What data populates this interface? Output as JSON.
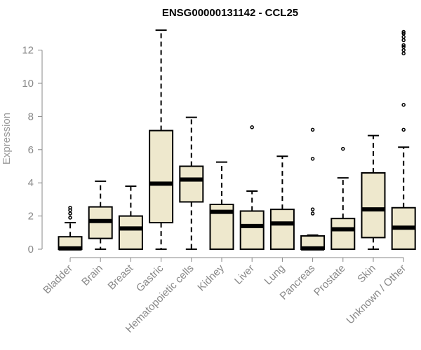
{
  "chart_data": {
    "type": "boxplot",
    "title": "ENSG00000131142 - CCL25",
    "ylabel": "Expression",
    "xlabel": "",
    "ylim": [
      0,
      13.3
    ],
    "yticks": [
      0,
      2,
      4,
      6,
      8,
      10,
      12
    ],
    "box_fill": "#EEE8CD",
    "box_stroke": "#000000",
    "categories": [
      "Bladder",
      "Brain",
      "Breast",
      "Gastric",
      "Hematopoietic cells",
      "Kidney",
      "Liver",
      "Lung",
      "Pancreas",
      "Prostate",
      "Skin",
      "Unknown / Other"
    ],
    "boxes": [
      {
        "min": 0,
        "q1": 0,
        "median": 0.05,
        "q3": 0.75,
        "max": 1.6,
        "outliers": [
          1.9,
          2.15,
          2.35,
          2.5
        ]
      },
      {
        "min": 0,
        "q1": 0.65,
        "median": 1.7,
        "q3": 2.55,
        "max": 4.1,
        "outliers": []
      },
      {
        "min": 0,
        "q1": 0,
        "median": 1.25,
        "q3": 2.0,
        "max": 3.8,
        "outliers": []
      },
      {
        "min": 0,
        "q1": 1.6,
        "median": 3.95,
        "q3": 7.15,
        "max": 13.2,
        "outliers": []
      },
      {
        "min": 0,
        "q1": 2.85,
        "median": 4.2,
        "q3": 5.0,
        "max": 7.95,
        "outliers": []
      },
      {
        "min": 0,
        "q1": 0,
        "median": 2.25,
        "q3": 2.7,
        "max": 5.25,
        "outliers": []
      },
      {
        "min": 0,
        "q1": 0,
        "median": 1.4,
        "q3": 2.3,
        "max": 3.5,
        "outliers": [
          7.35
        ]
      },
      {
        "min": 0,
        "q1": 0,
        "median": 1.55,
        "q3": 2.4,
        "max": 5.6,
        "outliers": []
      },
      {
        "min": 0,
        "q1": 0,
        "median": 0.05,
        "q3": 0.8,
        "max": 0.85,
        "outliers": [
          2.15,
          2.4,
          5.45,
          7.2
        ]
      },
      {
        "min": 0,
        "q1": 0,
        "median": 1.2,
        "q3": 1.85,
        "max": 4.3,
        "outliers": [
          6.05
        ]
      },
      {
        "min": 0,
        "q1": 0.7,
        "median": 2.4,
        "q3": 4.6,
        "max": 6.85,
        "outliers": []
      },
      {
        "min": 0,
        "q1": 0,
        "median": 1.3,
        "q3": 2.5,
        "max": 6.15,
        "outliers": [
          7.2,
          8.7,
          11.8,
          12.0,
          12.2,
          12.3,
          12.6,
          12.8,
          13.0,
          13.1
        ]
      }
    ]
  }
}
